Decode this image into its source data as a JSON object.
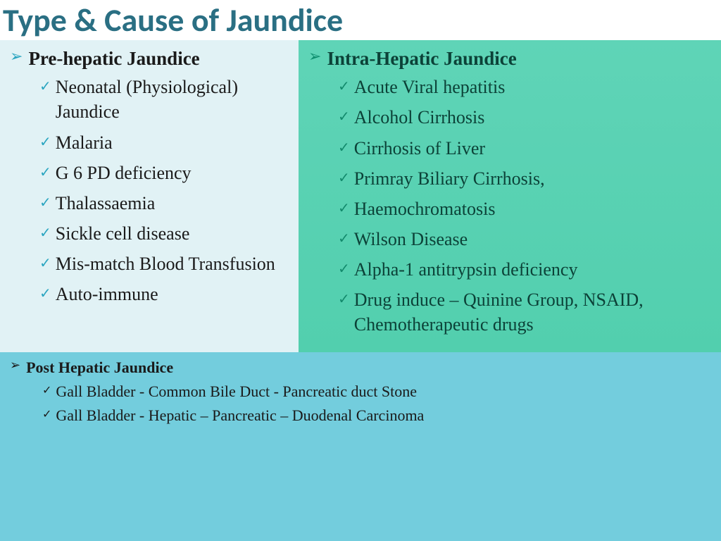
{
  "title": "Type & Cause of Jaundice",
  "colors": {
    "title_text": "#2a6f83",
    "title_bg": "#ffffff",
    "left_bg": "#e1f2f5",
    "right_bg_top": "#5fd4b7",
    "right_bg_bottom": "#52cfae",
    "bottom_bg": "#73cddd",
    "bullet_teal": "#2aa5c0",
    "bullet_green": "#128a6c",
    "text_dark": "#1a1a1a",
    "text_darkgreen": "#0c4238"
  },
  "left": {
    "heading": "Pre-hepatic Jaundice",
    "items": [
      "Neonatal (Physiological) Jaundice",
      "Malaria",
      "G 6 PD deficiency",
      "Thalassaemia",
      "Sickle cell disease",
      "Mis-match Blood Transfusion",
      "Auto-immune"
    ]
  },
  "right": {
    "heading": "Intra-Hepatic Jaundice",
    "items": [
      "Acute Viral hepatitis",
      "Alcohol Cirrhosis",
      " Cirrhosis of Liver",
      " Primray Biliary Cirrhosis,",
      " Haemochromatosis",
      " Wilson Disease",
      "Alpha-1 antitrypsin deficiency",
      "Drug induce – Quinine Group, NSAID, Chemotherapeutic drugs"
    ]
  },
  "bottom": {
    "heading": "Post Hepatic Jaundice",
    "items": [
      "Gall Bladder  - Common Bile Duct -  Pancreatic duct Stone",
      "Gall Bladder  - Hepatic – Pancreatic – Duodenal Carcinoma"
    ]
  }
}
